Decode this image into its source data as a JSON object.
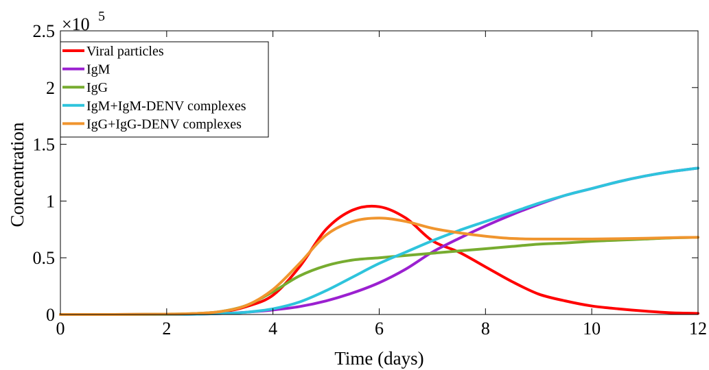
{
  "chart_data": {
    "type": "line",
    "xlabel": "Time (days)",
    "ylabel": "Concentration",
    "y_exponent_base": "×10",
    "y_exponent_power": "5",
    "xlim": [
      0,
      12
    ],
    "ylim": [
      0,
      2.5
    ],
    "x_ticks": [
      "0",
      "2",
      "4",
      "6",
      "8",
      "10",
      "12"
    ],
    "y_ticks": [
      "0",
      "0.5",
      "1",
      "1.5",
      "2",
      "2.5"
    ],
    "grid": false,
    "legend_position": "top-left",
    "x": [
      0,
      1,
      2,
      2.5,
      3,
      3.5,
      4,
      4.5,
      5,
      5.5,
      6,
      6.5,
      7,
      7.5,
      8,
      8.5,
      9,
      9.5,
      10,
      10.5,
      11,
      11.5,
      12
    ],
    "series": [
      {
        "name": "Viral particles",
        "color": "#ff0000",
        "values": [
          0,
          0,
          0.002,
          0.006,
          0.02,
          0.07,
          0.17,
          0.42,
          0.75,
          0.92,
          0.95,
          0.85,
          0.65,
          0.55,
          0.42,
          0.29,
          0.18,
          0.12,
          0.075,
          0.05,
          0.03,
          0.015,
          0.01
        ]
      },
      {
        "name": "IgM",
        "color": "#9b20d0",
        "values": [
          0,
          0,
          0,
          0.002,
          0.008,
          0.02,
          0.04,
          0.07,
          0.12,
          0.19,
          0.28,
          0.4,
          0.55,
          0.67,
          0.78,
          0.88,
          0.97,
          1.05,
          1.11,
          1.17,
          1.22,
          1.26,
          1.29
        ]
      },
      {
        "name": "IgG",
        "color": "#77ac30",
        "values": [
          0,
          0,
          0.003,
          0.008,
          0.025,
          0.08,
          0.2,
          0.34,
          0.43,
          0.48,
          0.5,
          0.52,
          0.54,
          0.56,
          0.58,
          0.6,
          0.62,
          0.63,
          0.645,
          0.655,
          0.665,
          0.675,
          0.68
        ]
      },
      {
        "name": "IgM+IgM-DENV complexes",
        "color": "#2ec4dc",
        "values": [
          0,
          0,
          0,
          0.002,
          0.008,
          0.02,
          0.05,
          0.11,
          0.21,
          0.33,
          0.45,
          0.55,
          0.65,
          0.74,
          0.82,
          0.9,
          0.98,
          1.05,
          1.11,
          1.17,
          1.22,
          1.26,
          1.29
        ]
      },
      {
        "name": "IgG+IgG-DENV complexes",
        "color": "#f0952e",
        "values": [
          0,
          0,
          0.003,
          0.008,
          0.025,
          0.08,
          0.22,
          0.45,
          0.7,
          0.82,
          0.85,
          0.82,
          0.76,
          0.72,
          0.69,
          0.67,
          0.665,
          0.665,
          0.665,
          0.668,
          0.672,
          0.677,
          0.68
        ]
      }
    ]
  }
}
